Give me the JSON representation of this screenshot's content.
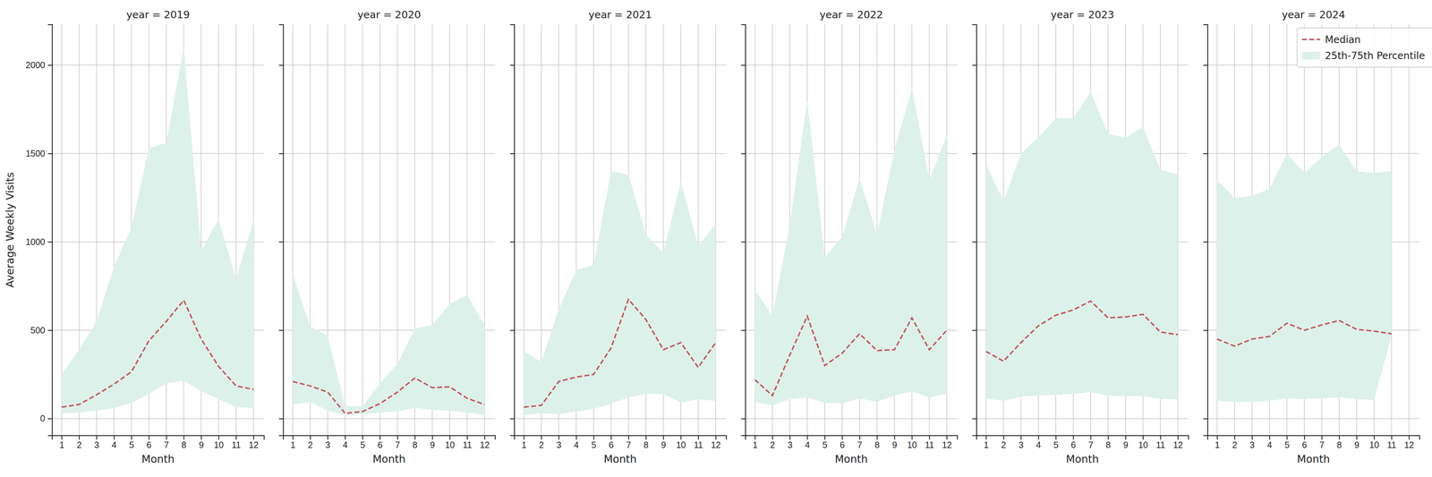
{
  "chart_data": [
    {
      "type": "line",
      "title": "year = 2019",
      "x_label": "Month",
      "y_label": "Average Weekly Visits",
      "x": [
        1,
        2,
        3,
        4,
        5,
        6,
        7,
        8,
        9,
        10,
        11,
        12
      ],
      "xlim": [
        0.45,
        12.6
      ],
      "xticks": [
        1,
        2,
        3,
        4,
        5,
        6,
        7,
        8,
        9,
        10,
        11,
        12
      ],
      "ylim": [
        -95,
        2230
      ],
      "yticks": [
        0,
        500,
        1000,
        1500,
        2000
      ],
      "grid": true,
      "series": [
        {
          "type": "area",
          "color": "#ddf1eb",
          "low": [
            30,
            35,
            45,
            60,
            90,
            140,
            200,
            215,
            155,
            110,
            65,
            60
          ],
          "high": [
            250,
            390,
            550,
            860,
            1080,
            1530,
            1560,
            2100,
            950,
            1130,
            790,
            1120
          ]
        },
        {
          "type": "line",
          "color": "#c44e52",
          "line_style": "dashed",
          "values": [
            65,
            80,
            135,
            195,
            265,
            440,
            550,
            670,
            450,
            295,
            185,
            165
          ]
        }
      ]
    },
    {
      "type": "line",
      "title": "year = 2020",
      "x_label": "Month",
      "tick_labels": "x",
      "x": [
        1,
        2,
        3,
        4,
        5,
        6,
        7,
        8,
        9,
        10,
        11,
        12
      ],
      "xlim": [
        0.45,
        12.6
      ],
      "xticks": [
        1,
        2,
        3,
        4,
        5,
        6,
        7,
        8,
        9,
        10,
        11,
        12
      ],
      "ylim": [
        -95,
        2230
      ],
      "yticks": [
        0,
        500,
        1000,
        1500,
        2000
      ],
      "grid": true,
      "series": [
        {
          "type": "area",
          "color": "#ddf1eb",
          "low": [
            80,
            95,
            45,
            20,
            25,
            35,
            40,
            60,
            50,
            45,
            35,
            20
          ],
          "high": [
            820,
            520,
            470,
            70,
            70,
            200,
            310,
            510,
            530,
            650,
            700,
            530
          ]
        },
        {
          "type": "line",
          "color": "#c44e52",
          "line_style": "dashed",
          "values": [
            210,
            185,
            150,
            30,
            40,
            85,
            150,
            230,
            175,
            180,
            115,
            80
          ]
        }
      ]
    },
    {
      "type": "line",
      "title": "year = 2021",
      "x_label": "Month",
      "tick_labels": "x",
      "x": [
        1,
        2,
        3,
        4,
        5,
        6,
        7,
        8,
        9,
        10,
        11,
        12
      ],
      "xlim": [
        0.45,
        12.6
      ],
      "xticks": [
        1,
        2,
        3,
        4,
        5,
        6,
        7,
        8,
        9,
        10,
        11,
        12
      ],
      "ylim": [
        -95,
        2230
      ],
      "yticks": [
        0,
        500,
        1000,
        1500,
        2000
      ],
      "grid": true,
      "series": [
        {
          "type": "area",
          "color": "#ddf1eb",
          "low": [
            20,
            30,
            25,
            40,
            55,
            85,
            120,
            140,
            140,
            90,
            110,
            100
          ],
          "high": [
            380,
            320,
            620,
            840,
            870,
            1400,
            1380,
            1040,
            940,
            1340,
            980,
            1100
          ]
        },
        {
          "type": "line",
          "color": "#c44e52",
          "line_style": "dashed",
          "values": [
            65,
            75,
            210,
            235,
            250,
            400,
            675,
            560,
            390,
            430,
            290,
            430
          ]
        }
      ]
    },
    {
      "type": "line",
      "title": "year = 2022",
      "x_label": "Month",
      "tick_labels": "x",
      "x": [
        1,
        2,
        3,
        4,
        5,
        6,
        7,
        8,
        9,
        10,
        11,
        12
      ],
      "xlim": [
        0.45,
        12.6
      ],
      "xticks": [
        1,
        2,
        3,
        4,
        5,
        6,
        7,
        8,
        9,
        10,
        11,
        12
      ],
      "ylim": [
        -95,
        2230
      ],
      "yticks": [
        0,
        500,
        1000,
        1500,
        2000
      ],
      "grid": true,
      "series": [
        {
          "type": "area",
          "color": "#ddf1eb",
          "low": [
            95,
            75,
            110,
            120,
            90,
            85,
            115,
            95,
            130,
            155,
            120,
            140
          ],
          "high": [
            730,
            580,
            1100,
            1800,
            910,
            1030,
            1360,
            1040,
            1520,
            1870,
            1350,
            1600
          ]
        },
        {
          "type": "line",
          "color": "#c44e52",
          "line_style": "dashed",
          "values": [
            220,
            130,
            360,
            580,
            300,
            370,
            480,
            385,
            390,
            570,
            390,
            500
          ]
        }
      ]
    },
    {
      "type": "line",
      "title": "year = 2023",
      "x_label": "Month",
      "tick_labels": "x",
      "x": [
        1,
        2,
        3,
        4,
        5,
        6,
        7,
        8,
        9,
        10,
        11,
        12
      ],
      "xlim": [
        0.45,
        12.6
      ],
      "xticks": [
        1,
        2,
        3,
        4,
        5,
        6,
        7,
        8,
        9,
        10,
        11,
        12
      ],
      "ylim": [
        -95,
        2230
      ],
      "yticks": [
        0,
        500,
        1000,
        1500,
        2000
      ],
      "grid": true,
      "series": [
        {
          "type": "area",
          "color": "#ddf1eb",
          "low": [
            115,
            100,
            125,
            130,
            135,
            140,
            150,
            130,
            125,
            130,
            110,
            110
          ],
          "high": [
            1440,
            1230,
            1500,
            1590,
            1700,
            1700,
            1850,
            1610,
            1590,
            1650,
            1410,
            1380
          ]
        },
        {
          "type": "line",
          "color": "#c44e52",
          "line_style": "dashed",
          "values": [
            380,
            325,
            430,
            525,
            585,
            615,
            665,
            570,
            575,
            590,
            490,
            475
          ]
        }
      ]
    },
    {
      "type": "line",
      "title": "year = 2024",
      "x_label": "Month",
      "tick_labels": "x",
      "legend": "upper right",
      "x": [
        1,
        2,
        3,
        4,
        5,
        6,
        7,
        8,
        9,
        10,
        11
      ],
      "xlim": [
        0.45,
        12.6
      ],
      "xticks": [
        1,
        2,
        3,
        4,
        5,
        6,
        7,
        8,
        9,
        10,
        11,
        12
      ],
      "ylim": [
        -95,
        2230
      ],
      "yticks": [
        0,
        500,
        1000,
        1500,
        2000
      ],
      "grid": true,
      "series": [
        {
          "type": "area",
          "name": "25th-75th Percentile",
          "color": "#ddf1eb",
          "low": [
            100,
            95,
            95,
            100,
            115,
            110,
            115,
            120,
            110,
            105,
            470
          ],
          "high": [
            1350,
            1250,
            1260,
            1300,
            1500,
            1390,
            1480,
            1550,
            1400,
            1390,
            1400
          ]
        },
        {
          "type": "line",
          "name": "Median",
          "color": "#c44e52",
          "line_style": "dashed",
          "values": [
            450,
            410,
            450,
            465,
            540,
            500,
            530,
            555,
            505,
            495,
            480
          ]
        }
      ]
    }
  ]
}
